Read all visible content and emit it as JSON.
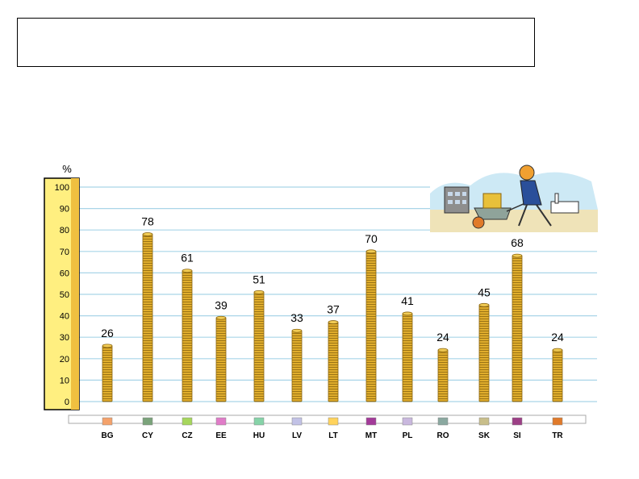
{
  "title_box": {
    "text": ""
  },
  "chart_data": {
    "type": "bar",
    "ylabel": "%",
    "ylim": [
      0,
      100
    ],
    "yticks": [
      0,
      10,
      20,
      30,
      40,
      50,
      60,
      70,
      80,
      90,
      100
    ],
    "grid": true,
    "categories": [
      "BG",
      "CY",
      "CZ",
      "EE",
      "HU",
      "LV",
      "LT",
      "MT",
      "PL",
      "RO",
      "SK",
      "SI",
      "TR"
    ],
    "values": [
      26,
      78,
      61,
      39,
      51,
      33,
      37,
      70,
      41,
      24,
      45,
      68,
      24
    ],
    "legend_colors": [
      "#f4a26b",
      "#7aa37a",
      "#a6d65c",
      "#e07cc8",
      "#86d3a8",
      "#c2c2e6",
      "#ffd35c",
      "#a33a99",
      "#c9b8de",
      "#8aa8a0",
      "#c8be8a",
      "#9c3f86",
      "#e07a2a"
    ],
    "bar_color": "#d9a520",
    "grid_color": "#a9d5e8",
    "axis_band_color": "#ffef80"
  },
  "illustration": {
    "icon": "wheelbarrow-of-coins-icon"
  }
}
